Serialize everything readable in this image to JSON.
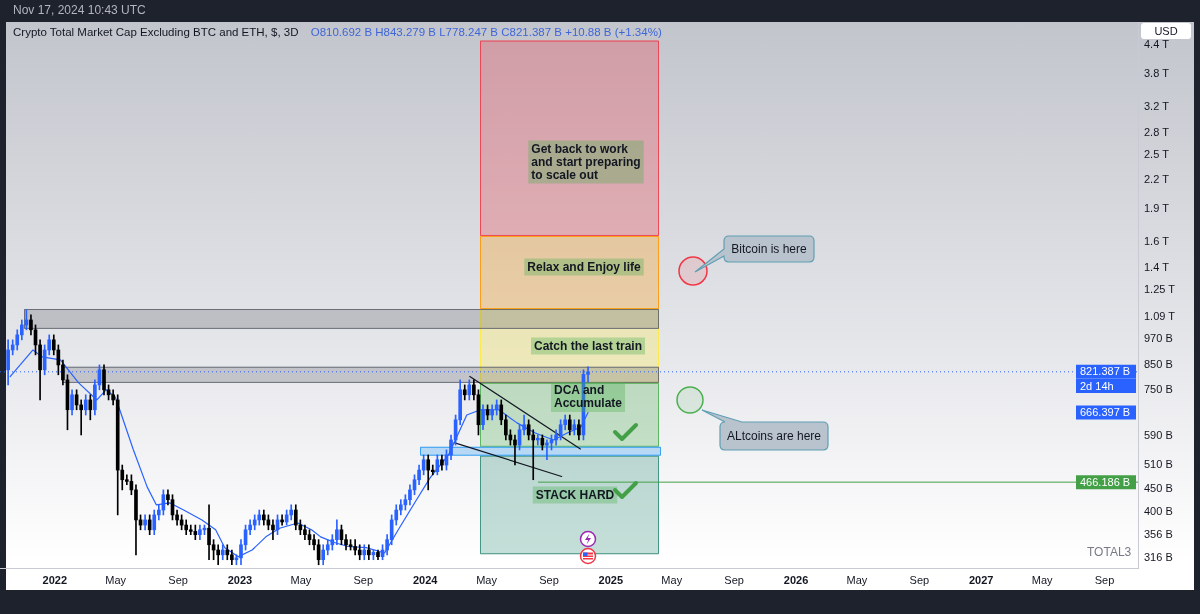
{
  "chart_data": {
    "type": "candlestick",
    "title": "Crypto Total Market Cap Excluding BTC and ETH, $, 3D",
    "subtitle": "O810.692 B H843.279 B L778.247 B C821.387 B +10.88 B (+1.34%)",
    "x": [
      "2021-10-01",
      "2021-10-10",
      "2021-10-19",
      "2021-10-28",
      "2021-11-06",
      "2021-11-15",
      "2021-11-24",
      "2021-12-03",
      "2021-12-12",
      "2021-12-21",
      "2021-12-30",
      "2022-01-08",
      "2022-01-17",
      "2022-01-26",
      "2022-02-04",
      "2022-02-13",
      "2022-02-22",
      "2022-03-03",
      "2022-03-12",
      "2022-03-21",
      "2022-03-30",
      "2022-04-08",
      "2022-04-17",
      "2022-04-26",
      "2022-05-05",
      "2022-05-14",
      "2022-05-23",
      "2022-06-01",
      "2022-06-10",
      "2022-06-19",
      "2022-06-28",
      "2022-07-07",
      "2022-07-16",
      "2022-07-25",
      "2022-08-03",
      "2022-08-12",
      "2022-08-21",
      "2022-08-30",
      "2022-09-08",
      "2022-09-17",
      "2022-09-26",
      "2022-10-05",
      "2022-10-14",
      "2022-10-23",
      "2022-11-01",
      "2022-11-10",
      "2022-11-19",
      "2022-11-28",
      "2022-12-07",
      "2022-12-16",
      "2022-12-25",
      "2023-01-03",
      "2023-01-12",
      "2023-01-21",
      "2023-01-30",
      "2023-02-08",
      "2023-02-17",
      "2023-02-26",
      "2023-03-07",
      "2023-03-16",
      "2023-03-25",
      "2023-04-03",
      "2023-04-12",
      "2023-04-21",
      "2023-04-30",
      "2023-05-09",
      "2023-05-18",
      "2023-05-27",
      "2023-06-05",
      "2023-06-14",
      "2023-06-23",
      "2023-07-02",
      "2023-07-11",
      "2023-07-20",
      "2023-07-29",
      "2023-08-07",
      "2023-08-16",
      "2023-08-25",
      "2023-09-03",
      "2023-09-12",
      "2023-09-21",
      "2023-09-30",
      "2023-10-09",
      "2023-10-18",
      "2023-10-27",
      "2023-11-05",
      "2023-11-14",
      "2023-11-23",
      "2023-12-02",
      "2023-12-11",
      "2023-12-20",
      "2023-12-29",
      "2024-01-07",
      "2024-01-16",
      "2024-01-25",
      "2024-02-03",
      "2024-02-12",
      "2024-02-21",
      "2024-03-01",
      "2024-03-10",
      "2024-03-19",
      "2024-03-28",
      "2024-04-06",
      "2024-04-15",
      "2024-04-24",
      "2024-05-03",
      "2024-05-12",
      "2024-05-21",
      "2024-05-30",
      "2024-06-08",
      "2024-06-17",
      "2024-06-26",
      "2024-07-05",
      "2024-07-14",
      "2024-07-23",
      "2024-08-01",
      "2024-08-10",
      "2024-08-19",
      "2024-08-28",
      "2024-09-06",
      "2024-09-15",
      "2024-09-24",
      "2024-10-03",
      "2024-10-12",
      "2024-10-21",
      "2024-10-30",
      "2024-11-08",
      "2024-11-17"
    ],
    "ohlc": [
      [
        830000000000.0,
        968000000000.0,
        768000000000.0,
        919000000000.0
      ],
      [
        919000000000.0,
        968000000000.0,
        896000000000.0,
        943000000000.0
      ],
      [
        943000000000.0,
        1019000000000.0,
        919000000000.0,
        993000000000.0
      ],
      [
        993000000000.0,
        1072000000000.0,
        968000000000.0,
        1045000000000.0
      ],
      [
        1045000000000.0,
        1129000000000.0,
        1019000000000.0,
        1072000000000.0
      ],
      [
        1072000000000.0,
        1100000000000.0,
        993000000000.0,
        1019000000000.0
      ],
      [
        1019000000000.0,
        1045000000000.0,
        896000000000.0,
        943000000000.0
      ],
      [
        943000000000.0,
        968000000000.0,
        711000000000.0,
        830000000000.0
      ],
      [
        830000000000.0,
        943000000000.0,
        809000000000.0,
        919000000000.0
      ],
      [
        919000000000.0,
        993000000000.0,
        896000000000.0,
        968000000000.0
      ],
      [
        968000000000.0,
        993000000000.0,
        896000000000.0,
        919000000000.0
      ],
      [
        919000000000.0,
        943000000000.0,
        809000000000.0,
        851000000000.0
      ],
      [
        851000000000.0,
        873000000000.0,
        768000000000.0,
        788000000000.0
      ],
      [
        788000000000.0,
        809000000000.0,
        610000000000.0,
        676000000000.0
      ],
      [
        676000000000.0,
        749000000000.0,
        658000000000.0,
        730000000000.0
      ],
      [
        730000000000.0,
        749000000000.0,
        676000000000.0,
        693000000000.0
      ],
      [
        693000000000.0,
        711000000000.0,
        594000000000.0,
        676000000000.0
      ],
      [
        676000000000.0,
        730000000000.0,
        658000000000.0,
        711000000000.0
      ],
      [
        711000000000.0,
        730000000000.0,
        642000000000.0,
        676000000000.0
      ],
      [
        676000000000.0,
        788000000000.0,
        658000000000.0,
        768000000000.0
      ],
      [
        768000000000.0,
        851000000000.0,
        749000000000.0,
        830000000000.0
      ],
      [
        830000000000.0,
        851000000000.0,
        730000000000.0,
        749000000000.0
      ],
      [
        749000000000.0,
        768000000000.0,
        711000000000.0,
        730000000000.0
      ],
      [
        730000000000.0,
        749000000000.0,
        693000000000.0,
        711000000000.0
      ],
      [
        711000000000.0,
        730000000000.0,
        394000000000.0,
        496000000000.0
      ],
      [
        496000000000.0,
        509000000000.0,
        448000000000.0,
        472000000000.0
      ],
      [
        472000000000.0,
        484000000000.0,
        460000000000.0,
        468000000000.0
      ],
      [
        468000000000.0,
        484000000000.0,
        437000000000.0,
        448000000000.0
      ],
      [
        448000000000.0,
        460000000000.0,
        321000000000.0,
        384000000000.0
      ],
      [
        384000000000.0,
        394000000000.0,
        365000000000.0,
        374000000000.0
      ],
      [
        374000000000.0,
        394000000000.0,
        365000000000.0,
        384000000000.0
      ],
      [
        384000000000.0,
        394000000000.0,
        356000000000.0,
        365000000000.0
      ],
      [
        365000000000.0,
        404000000000.0,
        356000000000.0,
        394000000000.0
      ],
      [
        394000000000.0,
        415000000000.0,
        384000000000.0,
        404000000000.0
      ],
      [
        404000000000.0,
        448000000000.0,
        394000000000.0,
        437000000000.0
      ],
      [
        437000000000.0,
        448000000000.0,
        415000000000.0,
        426000000000.0
      ],
      [
        426000000000.0,
        437000000000.0,
        384000000000.0,
        394000000000.0
      ],
      [
        394000000000.0,
        404000000000.0,
        374000000000.0,
        384000000000.0
      ],
      [
        384000000000.0,
        394000000000.0,
        365000000000.0,
        374000000000.0
      ],
      [
        374000000000.0,
        384000000000.0,
        356000000000.0,
        365000000000.0
      ],
      [
        365000000000.0,
        374000000000.0,
        356000000000.0,
        362000000000.0
      ],
      [
        362000000000.0,
        374000000000.0,
        347000000000.0,
        356000000000.0
      ],
      [
        356000000000.0,
        374000000000.0,
        347000000000.0,
        365000000000.0
      ],
      [
        365000000000.0,
        374000000000.0,
        356000000000.0,
        368000000000.0
      ],
      [
        368000000000.0,
        415000000000.0,
        313000000000.0,
        338000000000.0
      ],
      [
        338000000000.0,
        347000000000.0,
        313000000000.0,
        329000000000.0
      ],
      [
        329000000000.0,
        338000000000.0,
        305000000000.0,
        321000000000.0
      ],
      [
        321000000000.0,
        338000000000.0,
        313000000000.0,
        329000000000.0
      ],
      [
        329000000000.0,
        338000000000.0,
        313000000000.0,
        321000000000.0
      ],
      [
        321000000000.0,
        329000000000.0,
        305000000000.0,
        313000000000.0
      ],
      [
        313000000000.0,
        321000000000.0,
        305000000000.0,
        316000000000.0
      ],
      [
        316000000000.0,
        347000000000.0,
        305000000000.0,
        338000000000.0
      ],
      [
        338000000000.0,
        374000000000.0,
        329000000000.0,
        365000000000.0
      ],
      [
        365000000000.0,
        384000000000.0,
        356000000000.0,
        374000000000.0
      ],
      [
        374000000000.0,
        394000000000.0,
        365000000000.0,
        384000000000.0
      ],
      [
        384000000000.0,
        404000000000.0,
        374000000000.0,
        394000000000.0
      ],
      [
        394000000000.0,
        404000000000.0,
        374000000000.0,
        384000000000.0
      ],
      [
        384000000000.0,
        394000000000.0,
        365000000000.0,
        374000000000.0
      ],
      [
        374000000000.0,
        384000000000.0,
        347000000000.0,
        365000000000.0
      ],
      [
        365000000000.0,
        394000000000.0,
        356000000000.0,
        384000000000.0
      ],
      [
        384000000000.0,
        394000000000.0,
        374000000000.0,
        380000000000.0
      ],
      [
        380000000000.0,
        404000000000.0,
        374000000000.0,
        394000000000.0
      ],
      [
        394000000000.0,
        415000000000.0,
        384000000000.0,
        404000000000.0
      ],
      [
        404000000000.0,
        415000000000.0,
        365000000000.0,
        374000000000.0
      ],
      [
        374000000000.0,
        384000000000.0,
        356000000000.0,
        365000000000.0
      ],
      [
        365000000000.0,
        374000000000.0,
        347000000000.0,
        356000000000.0
      ],
      [
        356000000000.0,
        365000000000.0,
        338000000000.0,
        347000000000.0
      ],
      [
        347000000000.0,
        356000000000.0,
        329000000000.0,
        338000000000.0
      ],
      [
        338000000000.0,
        347000000000.0,
        305000000000.0,
        313000000000.0
      ],
      [
        313000000000.0,
        338000000000.0,
        305000000000.0,
        329000000000.0
      ],
      [
        329000000000.0,
        347000000000.0,
        321000000000.0,
        338000000000.0
      ],
      [
        338000000000.0,
        356000000000.0,
        329000000000.0,
        347000000000.0
      ],
      [
        347000000000.0,
        384000000000.0,
        338000000000.0,
        365000000000.0
      ],
      [
        365000000000.0,
        374000000000.0,
        338000000000.0,
        347000000000.0
      ],
      [
        347000000000.0,
        356000000000.0,
        329000000000.0,
        338000000000.0
      ],
      [
        338000000000.0,
        347000000000.0,
        329000000000.0,
        335000000000.0
      ],
      [
        335000000000.0,
        347000000000.0,
        321000000000.0,
        329000000000.0
      ],
      [
        329000000000.0,
        338000000000.0,
        313000000000.0,
        321000000000.0
      ],
      [
        321000000000.0,
        338000000000.0,
        313000000000.0,
        329000000000.0
      ],
      [
        329000000000.0,
        338000000000.0,
        313000000000.0,
        321000000000.0
      ],
      [
        321000000000.0,
        329000000000.0,
        313000000000.0,
        325000000000.0
      ],
      [
        325000000000.0,
        329000000000.0,
        313000000000.0,
        318000000000.0
      ],
      [
        318000000000.0,
        338000000000.0,
        313000000000.0,
        329000000000.0
      ],
      [
        329000000000.0,
        356000000000.0,
        321000000000.0,
        347000000000.0
      ],
      [
        347000000000.0,
        394000000000.0,
        338000000000.0,
        384000000000.0
      ],
      [
        384000000000.0,
        415000000000.0,
        374000000000.0,
        404000000000.0
      ],
      [
        404000000000.0,
        426000000000.0,
        394000000000.0,
        415000000000.0
      ],
      [
        415000000000.0,
        437000000000.0,
        404000000000.0,
        426000000000.0
      ],
      [
        426000000000.0,
        460000000000.0,
        415000000000.0,
        448000000000.0
      ],
      [
        448000000000.0,
        484000000000.0,
        437000000000.0,
        472000000000.0
      ],
      [
        472000000000.0,
        509000000000.0,
        460000000000.0,
        496000000000.0
      ],
      [
        496000000000.0,
        536000000000.0,
        484000000000.0,
        523000000000.0
      ],
      [
        523000000000.0,
        536000000000.0,
        448000000000.0,
        496000000000.0
      ],
      [
        496000000000.0,
        509000000000.0,
        484000000000.0,
        492000000000.0
      ],
      [
        492000000000.0,
        536000000000.0,
        484000000000.0,
        523000000000.0
      ],
      [
        523000000000.0,
        536000000000.0,
        496000000000.0,
        509000000000.0
      ],
      [
        509000000000.0,
        550000000000.0,
        496000000000.0,
        536000000000.0
      ],
      [
        536000000000.0,
        594000000000.0,
        523000000000.0,
        579000000000.0
      ],
      [
        579000000000.0,
        658000000000.0,
        564000000000.0,
        642000000000.0
      ],
      [
        642000000000.0,
        788000000000.0,
        626000000000.0,
        749000000000.0
      ],
      [
        749000000000.0,
        768000000000.0,
        711000000000.0,
        730000000000.0
      ],
      [
        730000000000.0,
        788000000000.0,
        711000000000.0,
        768000000000.0
      ],
      [
        768000000000.0,
        788000000000.0,
        711000000000.0,
        730000000000.0
      ],
      [
        730000000000.0,
        749000000000.0,
        594000000000.0,
        626000000000.0
      ],
      [
        626000000000.0,
        693000000000.0,
        610000000000.0,
        676000000000.0
      ],
      [
        676000000000.0,
        693000000000.0,
        642000000000.0,
        658000000000.0
      ],
      [
        658000000000.0,
        693000000000.0,
        642000000000.0,
        676000000000.0
      ],
      [
        676000000000.0,
        711000000000.0,
        658000000000.0,
        693000000000.0
      ],
      [
        693000000000.0,
        711000000000.0,
        626000000000.0,
        642000000000.0
      ],
      [
        642000000000.0,
        658000000000.0,
        579000000000.0,
        594000000000.0
      ],
      [
        594000000000.0,
        610000000000.0,
        564000000000.0,
        579000000000.0
      ],
      [
        579000000000.0,
        594000000000.0,
        509000000000.0,
        564000000000.0
      ],
      [
        564000000000.0,
        626000000000.0,
        550000000000.0,
        610000000000.0
      ],
      [
        610000000000.0,
        658000000000.0,
        594000000000.0,
        626000000000.0
      ],
      [
        626000000000.0,
        642000000000.0,
        579000000000.0,
        594000000000.0
      ],
      [
        594000000000.0,
        610000000000.0,
        472000000000.0,
        579000000000.0
      ],
      [
        579000000000.0,
        594000000000.0,
        564000000000.0,
        584000000000.0
      ],
      [
        584000000000.0,
        594000000000.0,
        550000000000.0,
        564000000000.0
      ],
      [
        564000000000.0,
        579000000000.0,
        523000000000.0,
        570000000000.0
      ],
      [
        570000000000.0,
        594000000000.0,
        550000000000.0,
        579000000000.0
      ],
      [
        579000000000.0,
        610000000000.0,
        564000000000.0,
        594000000000.0
      ],
      [
        594000000000.0,
        642000000000.0,
        579000000000.0,
        626000000000.0
      ],
      [
        626000000000.0,
        658000000000.0,
        610000000000.0,
        642000000000.0
      ],
      [
        642000000000.0,
        658000000000.0,
        594000000000.0,
        610000000000.0
      ],
      [
        610000000000.0,
        642000000000.0,
        594000000000.0,
        626000000000.0
      ],
      [
        626000000000.0,
        642000000000.0,
        579000000000.0,
        594000000000.0
      ],
      [
        594000000000.0,
        830000000000.0,
        579000000000.0,
        810692000000.0
      ],
      [
        810692000000.0,
        843279000000.0,
        778247000000.0,
        821387000000.0
      ]
    ],
    "colors": [
      "#2962ff",
      "#2962ff",
      "#2962ff",
      "#2962ff",
      "#2962ff",
      "#000000",
      "#000000",
      "#000000",
      "#2962ff",
      "#2962ff",
      "#000000",
      "#000000",
      "#000000",
      "#000000",
      "#2962ff",
      "#000000",
      "#000000",
      "#2962ff",
      "#000000",
      "#2962ff",
      "#2962ff",
      "#000000",
      "#000000",
      "#000000",
      "#000000",
      "#000000",
      "#000000",
      "#000000",
      "#000000",
      "#000000",
      "#2962ff",
      "#000000",
      "#2962ff",
      "#2962ff",
      "#2962ff",
      "#000000",
      "#000000",
      "#000000",
      "#000000",
      "#000000",
      "#000000",
      "#000000",
      "#2962ff",
      "#2962ff",
      "#000000",
      "#000000",
      "#000000",
      "#2962ff",
      "#000000",
      "#000000",
      "#2962ff",
      "#2962ff",
      "#2962ff",
      "#2962ff",
      "#2962ff",
      "#2962ff",
      "#000000",
      "#000000",
      "#000000",
      "#2962ff",
      "#000000",
      "#2962ff",
      "#2962ff",
      "#000000",
      "#000000",
      "#000000",
      "#000000",
      "#000000",
      "#000000",
      "#2962ff",
      "#2962ff",
      "#2962ff",
      "#2962ff",
      "#000000",
      "#000000",
      "#000000",
      "#000000",
      "#000000",
      "#2962ff",
      "#000000",
      "#2962ff",
      "#000000",
      "#2962ff",
      "#2962ff",
      "#2962ff",
      "#2962ff",
      "#2962ff",
      "#2962ff",
      "#2962ff",
      "#2962ff",
      "#2962ff",
      "#2962ff",
      "#000000",
      "#000000",
      "#2962ff",
      "#000000",
      "#2962ff",
      "#2962ff",
      "#2962ff",
      "#2962ff",
      "#000000",
      "#2962ff",
      "#000000",
      "#000000",
      "#2962ff",
      "#000000",
      "#2962ff",
      "#2962ff",
      "#000000",
      "#000000",
      "#000000",
      "#000000",
      "#2962ff",
      "#2962ff",
      "#000000",
      "#000000",
      "#2962ff",
      "#000000",
      "#2962ff",
      "#2962ff",
      "#2962ff",
      "#2962ff",
      "#2962ff",
      "#000000",
      "#2962ff",
      "#000000",
      "#2962ff",
      "#2962ff"
    ],
    "series": [
      {
        "type": "line",
        "color": "#2962ff",
        "x": [
          "2021-10-05",
          "2021-11-19",
          "2021-12-07",
          "2022-01-12",
          "2022-02-17",
          "2022-03-25",
          "2022-04-12",
          "2022-04-30",
          "2022-05-09",
          "2022-06-05",
          "2022-07-02",
          "2022-07-20",
          "2022-08-16",
          "2022-09-12",
          "2022-10-18",
          "2022-11-14",
          "2022-12-02",
          "2022-12-29",
          "2023-01-25",
          "2023-02-21",
          "2023-03-20",
          "2023-04-25",
          "2023-05-22",
          "2023-06-09",
          "2023-07-06",
          "2023-08-02",
          "2023-09-07",
          "2023-10-13",
          "2023-11-09",
          "2023-12-15",
          "2024-01-11",
          "2024-02-16",
          "2024-03-23",
          "2024-04-19",
          "2024-05-25",
          "2024-06-30",
          "2024-08-05",
          "2024-09-10",
          "2024-10-07",
          "2024-11-03",
          "2024-11-17"
        ],
        "values": [
          801000000000.0,
          919000000000.0,
          887000000000.0,
          873000000000.0,
          776000000000.0,
          711000000000.0,
          749000000000.0,
          722000000000.0,
          676000000000.0,
          550000000000.0,
          455000000000.0,
          415000000000.0,
          419000000000.0,
          404000000000.0,
          384000000000.0,
          365000000000.0,
          333000000000.0,
          318000000000.0,
          329000000000.0,
          352000000000.0,
          368000000000.0,
          378000000000.0,
          365000000000.0,
          352000000000.0,
          342000000000.0,
          335000000000.0,
          333000000000.0,
          324000000000.0,
          365000000000.0,
          426000000000.0,
          477000000000.0,
          536000000000.0,
          658000000000.0,
          676000000000.0,
          676000000000.0,
          632000000000.0,
          600000000000.0,
          579000000000.0,
          600000000000.0,
          619000000000.0,
          666397000000.0
        ]
      },
      {
        "type": "line",
        "color": "#131722",
        "x": [
          "2024-03-29",
          "2024-11-02"
        ],
        "values": [
          802000000000.0,
          553000000000.0
        ]
      },
      {
        "type": "line",
        "color": "#131722",
        "x": [
          "2024-02-27",
          "2024-09-26"
        ],
        "values": [
          571000000000.0,
          480000000000.0
        ]
      }
    ],
    "xlim": [
      "2021-09-15",
      "2027-11-06"
    ],
    "xticks": [
      {
        "value": "2022-01-01",
        "label": "2022"
      },
      {
        "value": "2022-05-01",
        "label": "May"
      },
      {
        "value": "2022-09-01",
        "label": "Sep"
      },
      {
        "value": "2023-01-01",
        "label": "2023"
      },
      {
        "value": "2023-05-01",
        "label": "May"
      },
      {
        "value": "2023-09-01",
        "label": "Sep"
      },
      {
        "value": "2024-01-01",
        "label": "2024"
      },
      {
        "value": "2024-05-01",
        "label": "May"
      },
      {
        "value": "2024-09-01",
        "label": "Sep"
      },
      {
        "value": "2025-01-01",
        "label": "2025"
      },
      {
        "value": "2025-05-01",
        "label": "May"
      },
      {
        "value": "2025-09-01",
        "label": "Sep"
      },
      {
        "value": "2026-01-01",
        "label": "2026"
      },
      {
        "value": "2026-05-01",
        "label": "May"
      },
      {
        "value": "2026-09-01",
        "label": "Sep"
      },
      {
        "value": "2027-01-01",
        "label": "2027"
      },
      {
        "value": "2027-05-01",
        "label": "May"
      },
      {
        "value": "2027-09-01",
        "label": "Sep"
      }
    ],
    "log": true,
    "ylim": [
      300000000000.0,
      4950000000000.0
    ],
    "yticks": [
      {
        "value": 316000000000.0,
        "label": "316 B"
      },
      {
        "value": 356000000000.0,
        "label": "356 B"
      },
      {
        "value": 400000000000.0,
        "label": "400 B"
      },
      {
        "value": 450000000000.0,
        "label": "450 B"
      },
      {
        "value": 510000000000.0,
        "label": "510 B"
      },
      {
        "value": 590000000000.0,
        "label": "590 B"
      },
      {
        "value": 750000000000.0,
        "label": "750 B"
      },
      {
        "value": 850000000000.0,
        "label": "850 B"
      },
      {
        "value": 970000000000.0,
        "label": "970 B"
      },
      {
        "value": 1090000000000.0,
        "label": "1.09 T"
      },
      {
        "value": 1250000000000.0,
        "label": "1.25 T"
      },
      {
        "value": 1400000000000.0,
        "label": "1.4 T"
      },
      {
        "value": 1600000000000.0,
        "label": "1.6 T"
      },
      {
        "value": 1900000000000.0,
        "label": "1.9 T"
      },
      {
        "value": 2200000000000.0,
        "label": "2.2 T"
      },
      {
        "value": 2500000000000.0,
        "label": "2.5 T"
      },
      {
        "value": 2800000000000.0,
        "label": "2.8 T"
      },
      {
        "value": 3200000000000.0,
        "label": "3.2 T"
      },
      {
        "value": 3800000000000.0,
        "label": "3.8 T"
      },
      {
        "value": 4400000000000.0,
        "label": "4.4 T"
      }
    ],
    "bands": [
      {
        "axis": "y",
        "from": 1650000000000.0,
        "to": 4500000000000.0,
        "label": "Get back to work and start preparing to scale out",
        "color": "#f23645"
      },
      {
        "axis": "y",
        "from": 1134000000000.0,
        "to": 1650000000000.0,
        "label": "Relax and Enjoy life",
        "color": "#ff9800"
      },
      {
        "axis": "y",
        "from": 776000000000.0,
        "to": 1134000000000.0,
        "label": "Catch the last train",
        "color": "#ffeb3b"
      },
      {
        "axis": "y",
        "from": 559000000000.0,
        "to": 776000000000.0,
        "label": "DCA and Accumulate",
        "color": "#4caf50"
      },
      {
        "axis": "y",
        "from": 322000000000.0,
        "to": 534000000000.0,
        "label": "STACK HARD",
        "color": "#2e8b76"
      },
      {
        "axis": "y",
        "from": 1024000000000.0,
        "to": 1134000000000.0,
        "color": "#5d606b"
      },
      {
        "axis": "y",
        "from": 776000000000.0,
        "to": 843000000000.0,
        "color": "#5d606b"
      },
      {
        "axis": "y",
        "from": 534000000000.0,
        "to": 559000000000.0,
        "color": "#2196f3"
      }
    ],
    "ref_lines": [
      {
        "axis": "y",
        "value": 466186000000.0,
        "label": "466.186 B",
        "color": "#43a047",
        "line_style": "solid"
      },
      {
        "axis": "y",
        "value": 821387000000.0,
        "label": "821.387 B",
        "color": "#2962ff",
        "line_style": "dotted"
      }
    ],
    "annotations": [
      "Nov 17, 2024 10:43 UTC",
      "USD",
      "TOTAL3",
      "2d 14h",
      "666.397 B",
      "Bitcoin is here",
      "ALtcoins are here"
    ]
  }
}
